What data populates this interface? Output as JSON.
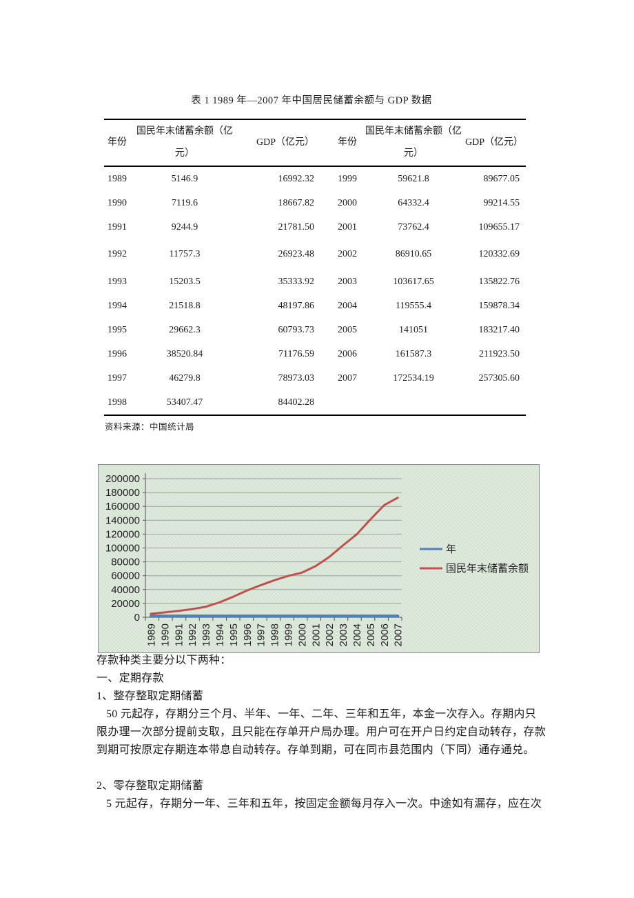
{
  "document": {
    "table_title": "表 1 1989 年—2007 年中国居民储蓄余额与 GDP 数据",
    "table": {
      "headers": [
        "年份",
        "国民年末储蓄余额（亿\n元）",
        "GDP（亿元）",
        "年份",
        "国民年末储蓄余额（亿\n元）",
        "GDP（亿元）"
      ],
      "rows": [
        [
          "1989",
          "5146.9",
          "16992.32",
          "1999",
          "59621.8",
          "89677.05"
        ],
        [
          "1990",
          "7119.6",
          "18667.82",
          "2000",
          "64332.4",
          "99214.55"
        ],
        [
          "1991",
          "9244.9",
          "21781.50",
          "2001",
          "73762.4",
          "109655.17"
        ],
        [
          "1992",
          "11757.3",
          "26923.48",
          "2002",
          "86910.65",
          "120332.69"
        ],
        [
          "1993",
          "15203.5",
          "35333.92",
          "2003",
          "103617.65",
          "135822.76"
        ],
        [
          "1994",
          "21518.8",
          "48197.86",
          "2004",
          "119555.4",
          "159878.34"
        ],
        [
          "1995",
          "29662.3",
          "60793.73",
          "2005",
          "141051",
          "183217.40"
        ],
        [
          "1996",
          "38520.84",
          "71176.59",
          "2006",
          "161587.3",
          "211923.50"
        ],
        [
          "1997",
          "46279.8",
          "78973.03",
          "2007",
          "172534.19",
          "257305.60"
        ],
        [
          "1998",
          "53407.47",
          "84402.28",
          "",
          "",
          ""
        ]
      ],
      "source_note": "资料来源：中国统计局"
    },
    "body_lines": [
      {
        "text": "存款种类主要分以下两种：",
        "indent": false
      },
      {
        "text": "一、定期存款",
        "indent": false
      },
      {
        "text": "1、整存整取定期储蓄",
        "indent": false
      },
      {
        "text": "50 元起存，存期分三个月、半年、一年、二年、三年和五年，本金一次存入。存期内只",
        "indent": true
      },
      {
        "text": "限办理一次部分提前支取，且只能在存单开户局办理。用户可在开户日约定自动转存，存款",
        "indent": false
      },
      {
        "text": "到期可按原定存期连本带息自动转存。存单到期，可在同市县范围内（下同）通存通兑。",
        "indent": false
      },
      {
        "text": "",
        "indent": false
      },
      {
        "text": "2、零存整取定期储蓄",
        "indent": false
      },
      {
        "text": "5 元起存，存期分一年、三年和五年，按固定金额每月存入一次。中途如有漏存，应在次",
        "indent": true
      }
    ]
  },
  "chart_data": {
    "type": "line",
    "title": "",
    "xlabel": "",
    "ylabel": "",
    "categories": [
      "1989",
      "1990",
      "1991",
      "1992",
      "1993",
      "1994",
      "1995",
      "1996",
      "1997",
      "1998",
      "1999",
      "2000",
      "2001",
      "2002",
      "2003",
      "2004",
      "2005",
      "2006",
      "2007"
    ],
    "series": [
      {
        "name": "年",
        "color": "#4f81bd",
        "values": [
          1989,
          1990,
          1991,
          1992,
          1993,
          1994,
          1995,
          1996,
          1997,
          1998,
          1999,
          2000,
          2001,
          2002,
          2003,
          2004,
          2005,
          2006,
          2007
        ]
      },
      {
        "name": "国民年末储蓄余额",
        "color": "#c0504d",
        "values": [
          5146.9,
          7119.6,
          9244.9,
          11757.3,
          15203.5,
          21518.8,
          29662.3,
          38520.84,
          46279.8,
          53407.47,
          59621.8,
          64332.4,
          73762.4,
          86910.65,
          103617.65,
          119555.4,
          141051,
          161587.3,
          172534.19
        ]
      }
    ],
    "ylim": [
      0,
      200000
    ],
    "ytick_step": 20000,
    "grid": true,
    "legend_position": "right",
    "plot_background": "#d4e7d1",
    "gridline_color": "#9aa29a",
    "axis_color": "#4d534d"
  }
}
